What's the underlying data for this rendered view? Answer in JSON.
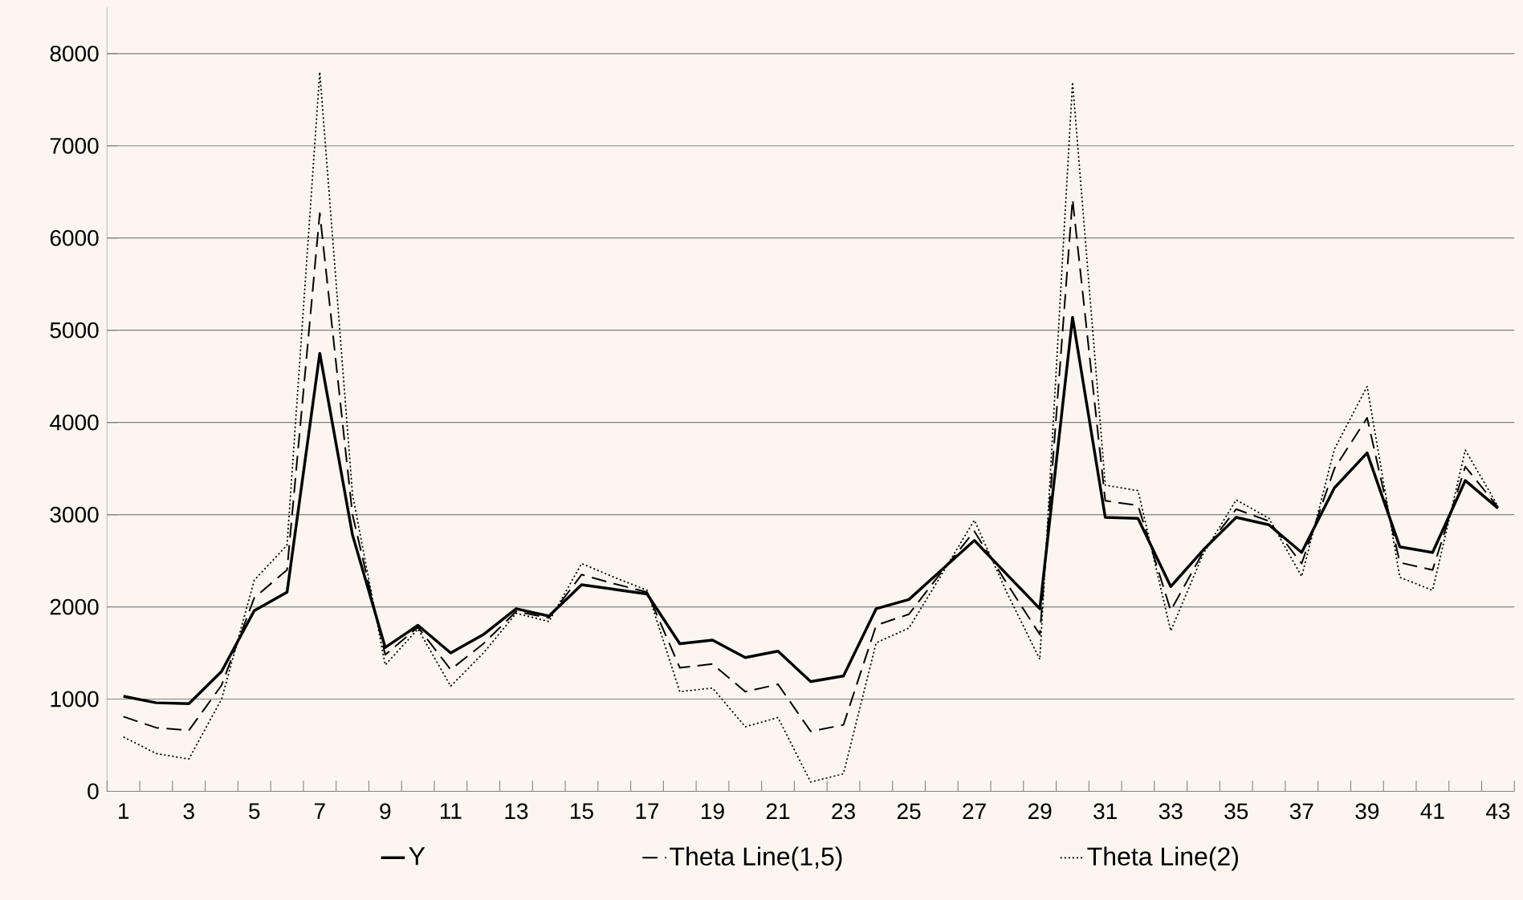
{
  "chart_data": {
    "type": "line",
    "categories": [
      "1",
      null,
      "3",
      null,
      "5",
      null,
      "7",
      null,
      "9",
      null,
      "11",
      null,
      "13",
      null,
      "15",
      null,
      "17",
      null,
      "19",
      null,
      "21",
      null,
      "23",
      null,
      "25",
      null,
      "27",
      null,
      "29",
      null,
      "31",
      null,
      "33",
      null,
      "35",
      null,
      "37",
      null,
      "39",
      null,
      "41",
      null,
      "43"
    ],
    "series": [
      {
        "name": "Y",
        "color": "#000000",
        "line_style": "solid",
        "values": [
          1030,
          960,
          950,
          1300,
          1960,
          2160,
          4750,
          2780,
          1560,
          1800,
          1500,
          1700,
          1980,
          1900,
          2240,
          2190,
          2140,
          1600,
          1640,
          1450,
          1520,
          1190,
          1250,
          1980,
          2080,
          2400,
          2720,
          2350,
          1980,
          5140,
          2970,
          2960,
          2220,
          2620,
          2970,
          2890,
          2590,
          3290,
          3670,
          2650,
          2590,
          3370,
          3070
        ]
      },
      {
        "name": "Theta Line(1,5)",
        "color": "#000000",
        "line_style": "dashed",
        "values": [
          810,
          690,
          660,
          1150,
          2100,
          2400,
          6270,
          3000,
          1480,
          1780,
          1320,
          1600,
          1950,
          1880,
          2350,
          2250,
          2160,
          1340,
          1380,
          1080,
          1160,
          650,
          720,
          1800,
          1920,
          2380,
          2820,
          2250,
          1700,
          6420,
          3150,
          3100,
          1960,
          2600,
          3060,
          2930,
          2470,
          3500,
          4050,
          2480,
          2400,
          3520,
          3080
        ]
      },
      {
        "name": "Theta Line(2)",
        "color": "#000000",
        "line_style": "dotted",
        "values": [
          590,
          410,
          350,
          1000,
          2290,
          2670,
          7800,
          3220,
          1370,
          1760,
          1140,
          1500,
          1930,
          1840,
          2470,
          2320,
          2180,
          1080,
          1120,
          700,
          800,
          100,
          190,
          1610,
          1770,
          2350,
          2940,
          2150,
          1430,
          7690,
          3320,
          3260,
          1740,
          2580,
          3160,
          2960,
          2330,
          3710,
          4390,
          2320,
          2180,
          3700,
          3090
        ]
      }
    ],
    "ylim": [
      0,
      8500
    ],
    "yticks": [
      0,
      1000,
      2000,
      3000,
      4000,
      5000,
      6000,
      7000,
      8000
    ],
    "grid": "y",
    "legend": "bottom",
    "marker": "none"
  }
}
